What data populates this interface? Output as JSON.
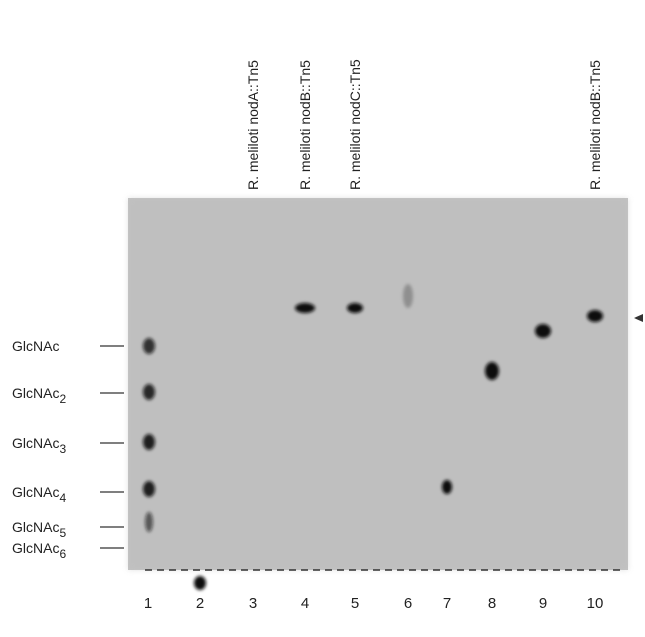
{
  "lane_labels": [
    {
      "lane": "3",
      "text": "R. meliloti nodA::Tn5"
    },
    {
      "lane": "4",
      "text": "R. meliloti nodB::Tn5"
    },
    {
      "lane": "5",
      "text": "R. meliloti nodC::Tn5"
    },
    {
      "lane": "10",
      "text": "R. meliloti nodB::Tn5"
    }
  ],
  "markers": [
    {
      "base": "GlcNAc"
    },
    {
      "base": "GlcNAc",
      "sub": "2"
    },
    {
      "base": "GlcNAc",
      "sub": "3"
    },
    {
      "base": "GlcNAc",
      "sub": "4"
    },
    {
      "base": "GlcNAc",
      "sub": "5"
    },
    {
      "base": "GlcNAc",
      "sub": "6"
    }
  ],
  "lane_numbers": [
    "1",
    "2",
    "3",
    "4",
    "5",
    "6",
    "7",
    "8",
    "9",
    "10"
  ]
}
